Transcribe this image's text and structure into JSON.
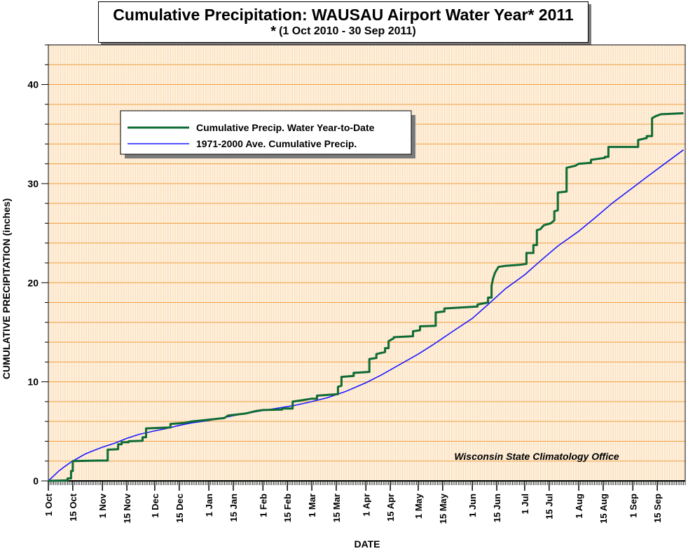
{
  "chart_data": {
    "type": "line",
    "title": "Cumulative Precipitation: WAUSAU Airport Water Year* 2011",
    "subtitle_star": "*",
    "subtitle": "(1 Oct 2010 - 30 Sep 2011)",
    "xlabel": "DATE",
    "ylabel": "CUMULATIVE PRECIPITATION (inches)",
    "annotation": "Wisconsin State Climatology Office",
    "ylim": [
      0,
      44
    ],
    "xlim": [
      "2010-10-01",
      "2011-09-30"
    ],
    "yticks": [
      0,
      10,
      20,
      30,
      40
    ],
    "x_tick_labels": [
      {
        "date": "2010-10-01",
        "label": "1 Oct"
      },
      {
        "date": "2010-10-15",
        "label": "15 Oct"
      },
      {
        "date": "2010-11-01",
        "label": "1 Nov"
      },
      {
        "date": "2010-11-15",
        "label": "15 Nov"
      },
      {
        "date": "2010-12-01",
        "label": "1 Dec"
      },
      {
        "date": "2010-12-15",
        "label": "15 Dec"
      },
      {
        "date": "2011-01-01",
        "label": "1 Jan"
      },
      {
        "date": "2011-01-15",
        "label": "15 Jan"
      },
      {
        "date": "2011-02-01",
        "label": "1 Feb"
      },
      {
        "date": "2011-02-15",
        "label": "15 Feb"
      },
      {
        "date": "2011-03-01",
        "label": "1 Mar"
      },
      {
        "date": "2011-03-15",
        "label": "15 Mar"
      },
      {
        "date": "2011-04-01",
        "label": "1 Apr"
      },
      {
        "date": "2011-04-15",
        "label": "15 Apr"
      },
      {
        "date": "2011-05-01",
        "label": "1 May"
      },
      {
        "date": "2011-05-15",
        "label": "15 May"
      },
      {
        "date": "2011-06-01",
        "label": "1 Jun"
      },
      {
        "date": "2011-06-15",
        "label": "15 Jun"
      },
      {
        "date": "2011-07-01",
        "label": "1 Jul"
      },
      {
        "date": "2011-07-15",
        "label": "15 Jul"
      },
      {
        "date": "2011-08-01",
        "label": "1 Aug"
      },
      {
        "date": "2011-08-15",
        "label": "15 Aug"
      },
      {
        "date": "2011-09-01",
        "label": "1 Sep"
      },
      {
        "date": "2011-09-15",
        "label": "15 Sep"
      }
    ],
    "grid": true,
    "legend_position": "top-left",
    "colors": {
      "plot_bg": "#fff4e6",
      "major_grid": "#f0a040",
      "minor_grid": "#f8d2a0"
    },
    "series": [
      {
        "name": "Cumulative Precip.  Water Year-to-Date",
        "color": "#0e6b35",
        "style": "step",
        "points": [
          [
            "2010-10-01",
            0.0
          ],
          [
            "2010-10-12",
            0.05
          ],
          [
            "2010-10-12",
            0.25
          ],
          [
            "2010-10-14",
            0.25
          ],
          [
            "2010-10-14",
            1.0
          ],
          [
            "2010-10-15",
            1.0
          ],
          [
            "2010-10-15",
            2.0
          ],
          [
            "2010-10-30",
            2.05
          ],
          [
            "2010-11-04",
            2.05
          ],
          [
            "2010-11-04",
            3.15
          ],
          [
            "2010-11-10",
            3.2
          ],
          [
            "2010-11-10",
            3.7
          ],
          [
            "2010-11-12",
            3.7
          ],
          [
            "2010-11-12",
            3.9
          ],
          [
            "2010-11-16",
            3.9
          ],
          [
            "2010-11-16",
            4.0
          ],
          [
            "2010-11-24",
            4.05
          ],
          [
            "2010-11-24",
            4.4
          ],
          [
            "2010-11-26",
            4.4
          ],
          [
            "2010-11-26",
            5.3
          ],
          [
            "2010-12-10",
            5.4
          ],
          [
            "2010-12-10",
            5.75
          ],
          [
            "2010-12-18",
            5.85
          ],
          [
            "2010-12-22",
            6.0
          ],
          [
            "2010-12-28",
            6.1
          ],
          [
            "2011-01-05",
            6.25
          ],
          [
            "2011-01-10",
            6.35
          ],
          [
            "2011-01-12",
            6.6
          ],
          [
            "2011-01-22",
            6.8
          ],
          [
            "2011-01-28",
            7.05
          ],
          [
            "2011-02-01",
            7.15
          ],
          [
            "2011-02-12",
            7.2
          ],
          [
            "2011-02-12",
            7.3
          ],
          [
            "2011-02-18",
            7.3
          ],
          [
            "2011-02-18",
            8.0
          ],
          [
            "2011-02-22",
            8.1
          ],
          [
            "2011-03-01",
            8.3
          ],
          [
            "2011-03-04",
            8.3
          ],
          [
            "2011-03-04",
            8.6
          ],
          [
            "2011-03-16",
            8.75
          ],
          [
            "2011-03-16",
            9.5
          ],
          [
            "2011-03-18",
            9.6
          ],
          [
            "2011-03-18",
            10.5
          ],
          [
            "2011-03-25",
            10.6
          ],
          [
            "2011-03-25",
            10.9
          ],
          [
            "2011-04-03",
            11.0
          ],
          [
            "2011-04-03",
            12.3
          ],
          [
            "2011-04-07",
            12.4
          ],
          [
            "2011-04-07",
            12.8
          ],
          [
            "2011-04-12",
            13.0
          ],
          [
            "2011-04-12",
            13.4
          ],
          [
            "2011-04-14",
            13.4
          ],
          [
            "2011-04-14",
            14.1
          ],
          [
            "2011-04-17",
            14.4
          ],
          [
            "2011-04-17",
            14.5
          ],
          [
            "2011-04-28",
            14.6
          ],
          [
            "2011-04-28",
            15.1
          ],
          [
            "2011-05-02",
            15.2
          ],
          [
            "2011-05-02",
            15.6
          ],
          [
            "2011-05-11",
            15.65
          ],
          [
            "2011-05-11",
            17.0
          ],
          [
            "2011-05-16",
            17.1
          ],
          [
            "2011-05-16",
            17.4
          ],
          [
            "2011-06-04",
            17.6
          ],
          [
            "2011-06-04",
            17.8
          ],
          [
            "2011-06-10",
            18.0
          ],
          [
            "2011-06-10",
            18.5
          ],
          [
            "2011-06-12",
            18.5
          ],
          [
            "2011-06-12",
            19.7
          ],
          [
            "2011-06-13",
            20.5
          ],
          [
            "2011-06-14",
            21.0
          ],
          [
            "2011-06-16",
            21.6
          ],
          [
            "2011-06-20",
            21.7
          ],
          [
            "2011-06-28",
            21.8
          ],
          [
            "2011-07-02",
            21.9
          ],
          [
            "2011-07-02",
            23.0
          ],
          [
            "2011-07-06",
            23.0
          ],
          [
            "2011-07-06",
            23.8
          ],
          [
            "2011-07-08",
            23.8
          ],
          [
            "2011-07-08",
            25.3
          ],
          [
            "2011-07-10",
            25.4
          ],
          [
            "2011-07-12",
            25.8
          ],
          [
            "2011-07-16",
            26.0
          ],
          [
            "2011-07-18",
            26.3
          ],
          [
            "2011-07-18",
            27.2
          ],
          [
            "2011-07-20",
            27.3
          ],
          [
            "2011-07-20",
            29.1
          ],
          [
            "2011-07-25",
            29.2
          ],
          [
            "2011-07-25",
            31.6
          ],
          [
            "2011-07-30",
            31.8
          ],
          [
            "2011-08-01",
            32.0
          ],
          [
            "2011-08-08",
            32.1
          ],
          [
            "2011-08-08",
            32.4
          ],
          [
            "2011-08-16",
            32.6
          ],
          [
            "2011-08-16",
            32.7
          ],
          [
            "2011-08-18",
            32.7
          ],
          [
            "2011-08-18",
            33.7
          ],
          [
            "2011-09-02",
            33.7
          ],
          [
            "2011-09-04",
            33.7
          ],
          [
            "2011-09-04",
            34.4
          ],
          [
            "2011-09-09",
            34.6
          ],
          [
            "2011-09-09",
            34.8
          ],
          [
            "2011-09-12",
            34.8
          ],
          [
            "2011-09-12",
            36.6
          ],
          [
            "2011-09-14",
            36.8
          ],
          [
            "2011-09-17",
            37.0
          ],
          [
            "2011-09-30",
            37.1
          ]
        ]
      },
      {
        "name": "1971-2000 Ave. Cumulative Precip.",
        "color": "#1a1aff",
        "style": "smooth",
        "points": [
          [
            "2010-10-01",
            0.0
          ],
          [
            "2010-10-04",
            0.5
          ],
          [
            "2010-10-07",
            1.0
          ],
          [
            "2010-10-10",
            1.4
          ],
          [
            "2010-10-14",
            1.9
          ],
          [
            "2010-10-18",
            2.3
          ],
          [
            "2010-10-22",
            2.7
          ],
          [
            "2010-10-26",
            3.0
          ],
          [
            "2010-11-01",
            3.4
          ],
          [
            "2010-11-08",
            3.8
          ],
          [
            "2010-11-15",
            4.3
          ],
          [
            "2010-11-22",
            4.7
          ],
          [
            "2010-12-01",
            5.05
          ],
          [
            "2010-12-08",
            5.3
          ],
          [
            "2010-12-15",
            5.6
          ],
          [
            "2010-12-22",
            5.85
          ],
          [
            "2011-01-01",
            6.1
          ],
          [
            "2011-01-10",
            6.4
          ],
          [
            "2011-01-20",
            6.75
          ],
          [
            "2011-02-01",
            7.1
          ],
          [
            "2011-02-10",
            7.35
          ],
          [
            "2011-02-20",
            7.65
          ],
          [
            "2011-03-01",
            8.0
          ],
          [
            "2011-03-10",
            8.4
          ],
          [
            "2011-03-20",
            9.0
          ],
          [
            "2011-04-01",
            9.9
          ],
          [
            "2011-04-10",
            10.7
          ],
          [
            "2011-04-20",
            11.7
          ],
          [
            "2011-05-01",
            12.8
          ],
          [
            "2011-05-10",
            13.8
          ],
          [
            "2011-05-20",
            15.0
          ],
          [
            "2011-06-01",
            16.4
          ],
          [
            "2011-06-10",
            17.8
          ],
          [
            "2011-06-20",
            19.4
          ],
          [
            "2011-07-01",
            20.8
          ],
          [
            "2011-07-10",
            22.2
          ],
          [
            "2011-07-20",
            23.7
          ],
          [
            "2011-08-01",
            25.2
          ],
          [
            "2011-08-10",
            26.5
          ],
          [
            "2011-08-20",
            28.0
          ],
          [
            "2011-09-01",
            29.6
          ],
          [
            "2011-09-10",
            30.8
          ],
          [
            "2011-09-20",
            32.1
          ],
          [
            "2011-09-30",
            33.4
          ]
        ]
      }
    ]
  }
}
